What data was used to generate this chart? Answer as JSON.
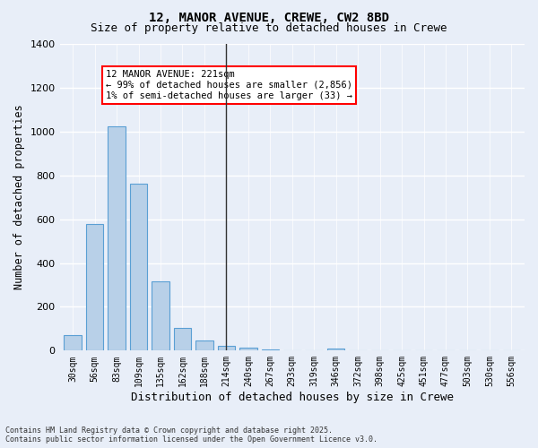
{
  "title1": "12, MANOR AVENUE, CREWE, CW2 8BD",
  "title2": "Size of property relative to detached houses in Crewe",
  "xlabel": "Distribution of detached houses by size in Crewe",
  "ylabel": "Number of detached properties",
  "categories": [
    "30sqm",
    "56sqm",
    "83sqm",
    "109sqm",
    "135sqm",
    "162sqm",
    "188sqm",
    "214sqm",
    "240sqm",
    "267sqm",
    "293sqm",
    "319sqm",
    "346sqm",
    "372sqm",
    "398sqm",
    "425sqm",
    "451sqm",
    "477sqm",
    "503sqm",
    "530sqm",
    "556sqm"
  ],
  "values": [
    70,
    580,
    1025,
    760,
    315,
    105,
    45,
    22,
    12,
    5,
    0,
    0,
    8,
    0,
    0,
    0,
    0,
    0,
    0,
    0,
    0
  ],
  "bar_color": "#b8d0e8",
  "bar_edge_color": "#5a9fd4",
  "property_line_index": 7,
  "annotation_title": "12 MANOR AVENUE: 221sqm",
  "annotation_line1": "← 99% of detached houses are smaller (2,856)",
  "annotation_line2": "1% of semi-detached houses are larger (33) →",
  "footer1": "Contains HM Land Registry data © Crown copyright and database right 2025.",
  "footer2": "Contains public sector information licensed under the Open Government Licence v3.0.",
  "bg_color": "#e8eef8",
  "ylim": [
    0,
    1400
  ],
  "yticks": [
    0,
    200,
    400,
    600,
    800,
    1000,
    1200,
    1400
  ]
}
